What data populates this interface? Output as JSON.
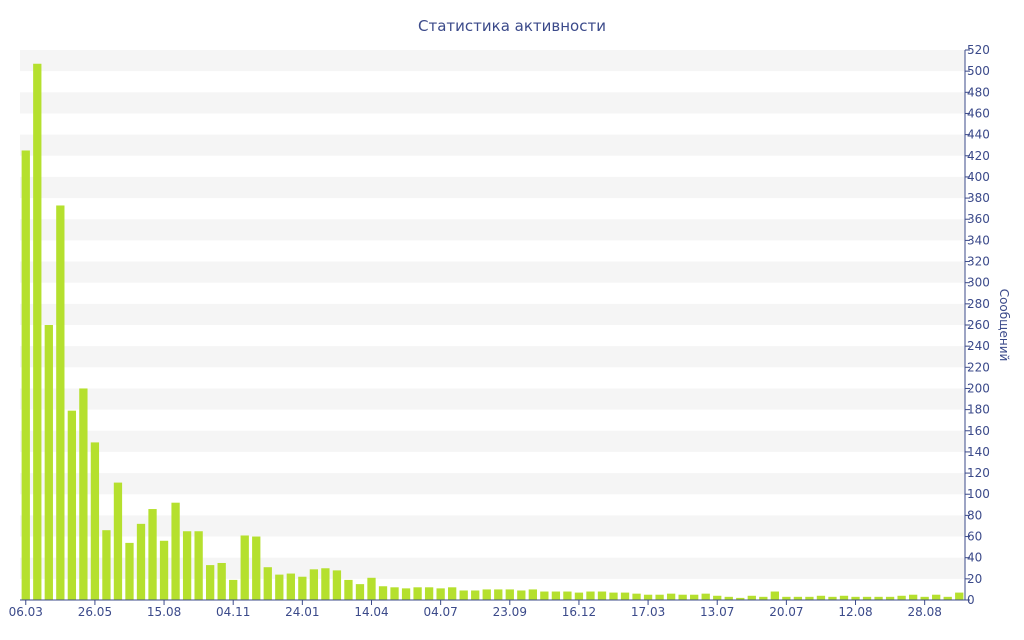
{
  "chart_data": {
    "type": "bar",
    "title": "Статистика активности",
    "xlabel": "",
    "ylabel": "Сообщений",
    "ylim": [
      0,
      520
    ],
    "y_ticks": [
      0,
      20,
      40,
      60,
      80,
      100,
      120,
      140,
      160,
      180,
      200,
      220,
      240,
      260,
      280,
      300,
      320,
      340,
      360,
      380,
      400,
      420,
      440,
      460,
      480,
      500,
      520
    ],
    "y_axis_side": "right",
    "grid": "horizontal bands",
    "bar_color": "#b5e02e",
    "x_tick_labels": [
      {
        "index": 0,
        "label": "06.03"
      },
      {
        "index": 6,
        "label": "26.05"
      },
      {
        "index": 12,
        "label": "15.08"
      },
      {
        "index": 18,
        "label": "04.11"
      },
      {
        "index": 24,
        "label": "24.01"
      },
      {
        "index": 30,
        "label": "14.04"
      },
      {
        "index": 36,
        "label": "04.07"
      },
      {
        "index": 42,
        "label": "23.09"
      },
      {
        "index": 48,
        "label": "16.12"
      },
      {
        "index": 54,
        "label": "17.03"
      },
      {
        "index": 60,
        "label": "13.07"
      },
      {
        "index": 66,
        "label": "20.07"
      },
      {
        "index": 72,
        "label": "12.08"
      },
      {
        "index": 78,
        "label": "28.08"
      }
    ],
    "values": [
      425,
      507,
      260,
      373,
      179,
      200,
      149,
      66,
      111,
      54,
      72,
      86,
      56,
      92,
      65,
      65,
      33,
      35,
      19,
      61,
      60,
      31,
      24,
      25,
      22,
      29,
      30,
      28,
      19,
      15,
      21,
      13,
      12,
      11,
      12,
      12,
      11,
      12,
      9,
      9,
      10,
      10,
      10,
      9,
      10,
      8,
      8,
      8,
      7,
      8,
      8,
      7,
      7,
      6,
      5,
      5,
      6,
      5,
      5,
      6,
      4,
      3,
      2,
      4,
      3,
      8,
      3,
      3,
      3,
      4,
      3,
      4,
      3,
      3,
      3,
      3,
      4,
      5,
      3,
      5,
      3,
      7
    ]
  }
}
